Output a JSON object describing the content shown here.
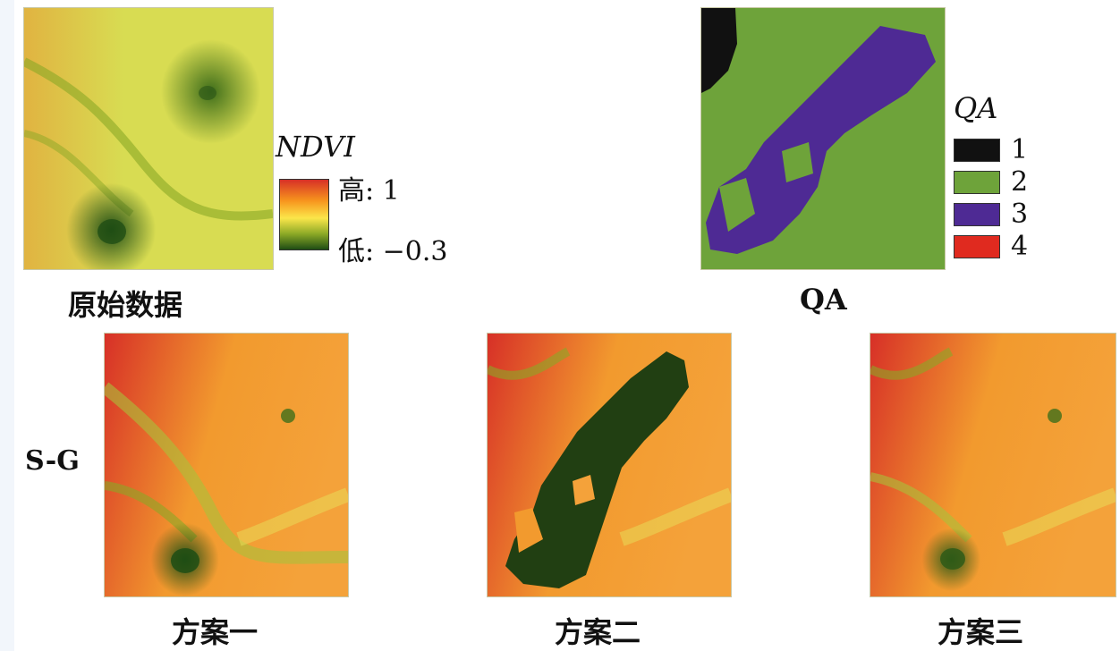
{
  "panels": {
    "original": {
      "caption": "原始数据"
    },
    "qa": {
      "caption": "QA"
    },
    "scheme1": {
      "caption": "方案一"
    },
    "scheme2": {
      "caption": "方案二"
    },
    "scheme3": {
      "caption": "方案三"
    }
  },
  "row_label": "S-G",
  "ndvi_legend": {
    "title": "NDVI",
    "high": "高: 1",
    "low": "低: −0.3",
    "colors": [
      "#d73027",
      "#f7941d",
      "#fbe64a",
      "#8aa826",
      "#1f4d14"
    ]
  },
  "qa_legend": {
    "title": "QA",
    "items": [
      {
        "label": "1",
        "color": "#111111"
      },
      {
        "label": "2",
        "color": "#6ea33a"
      },
      {
        "label": "3",
        "color": "#4e2a94"
      },
      {
        "label": "4",
        "color": "#e02a1f"
      }
    ]
  }
}
